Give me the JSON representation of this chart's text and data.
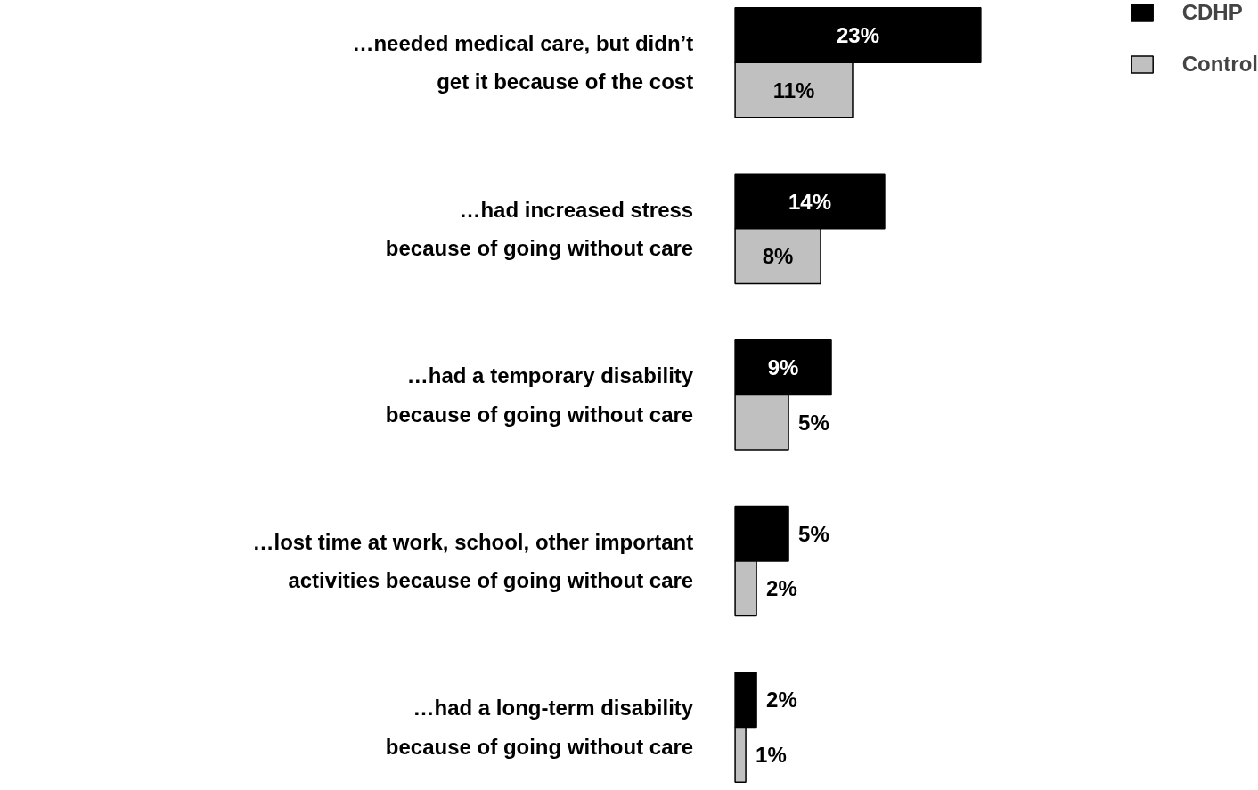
{
  "chart_data": {
    "type": "bar",
    "orientation": "horizontal",
    "categories": [
      "…needed medical care, but didn’t\nget it because of the cost",
      "…had increased stress\nbecause of going without care",
      "…had a temporary disability\nbecause of going without care",
      "…lost time at work, school, other important\nactivities because of going without care",
      "…had a long-term disability\nbecause of going without care"
    ],
    "series": [
      {
        "name": "CDHP",
        "color": "#000000",
        "values": [
          23,
          14,
          9,
          5,
          2
        ],
        "value_labels": [
          "23%",
          "14%",
          "9%",
          "5%",
          "2%"
        ]
      },
      {
        "name": "Control",
        "color": "#c0c0c0",
        "values": [
          11,
          8,
          5,
          2,
          1
        ],
        "value_labels": [
          "11%",
          "8%",
          "5%",
          "2%",
          "1%"
        ]
      }
    ],
    "legend": "top right"
  }
}
